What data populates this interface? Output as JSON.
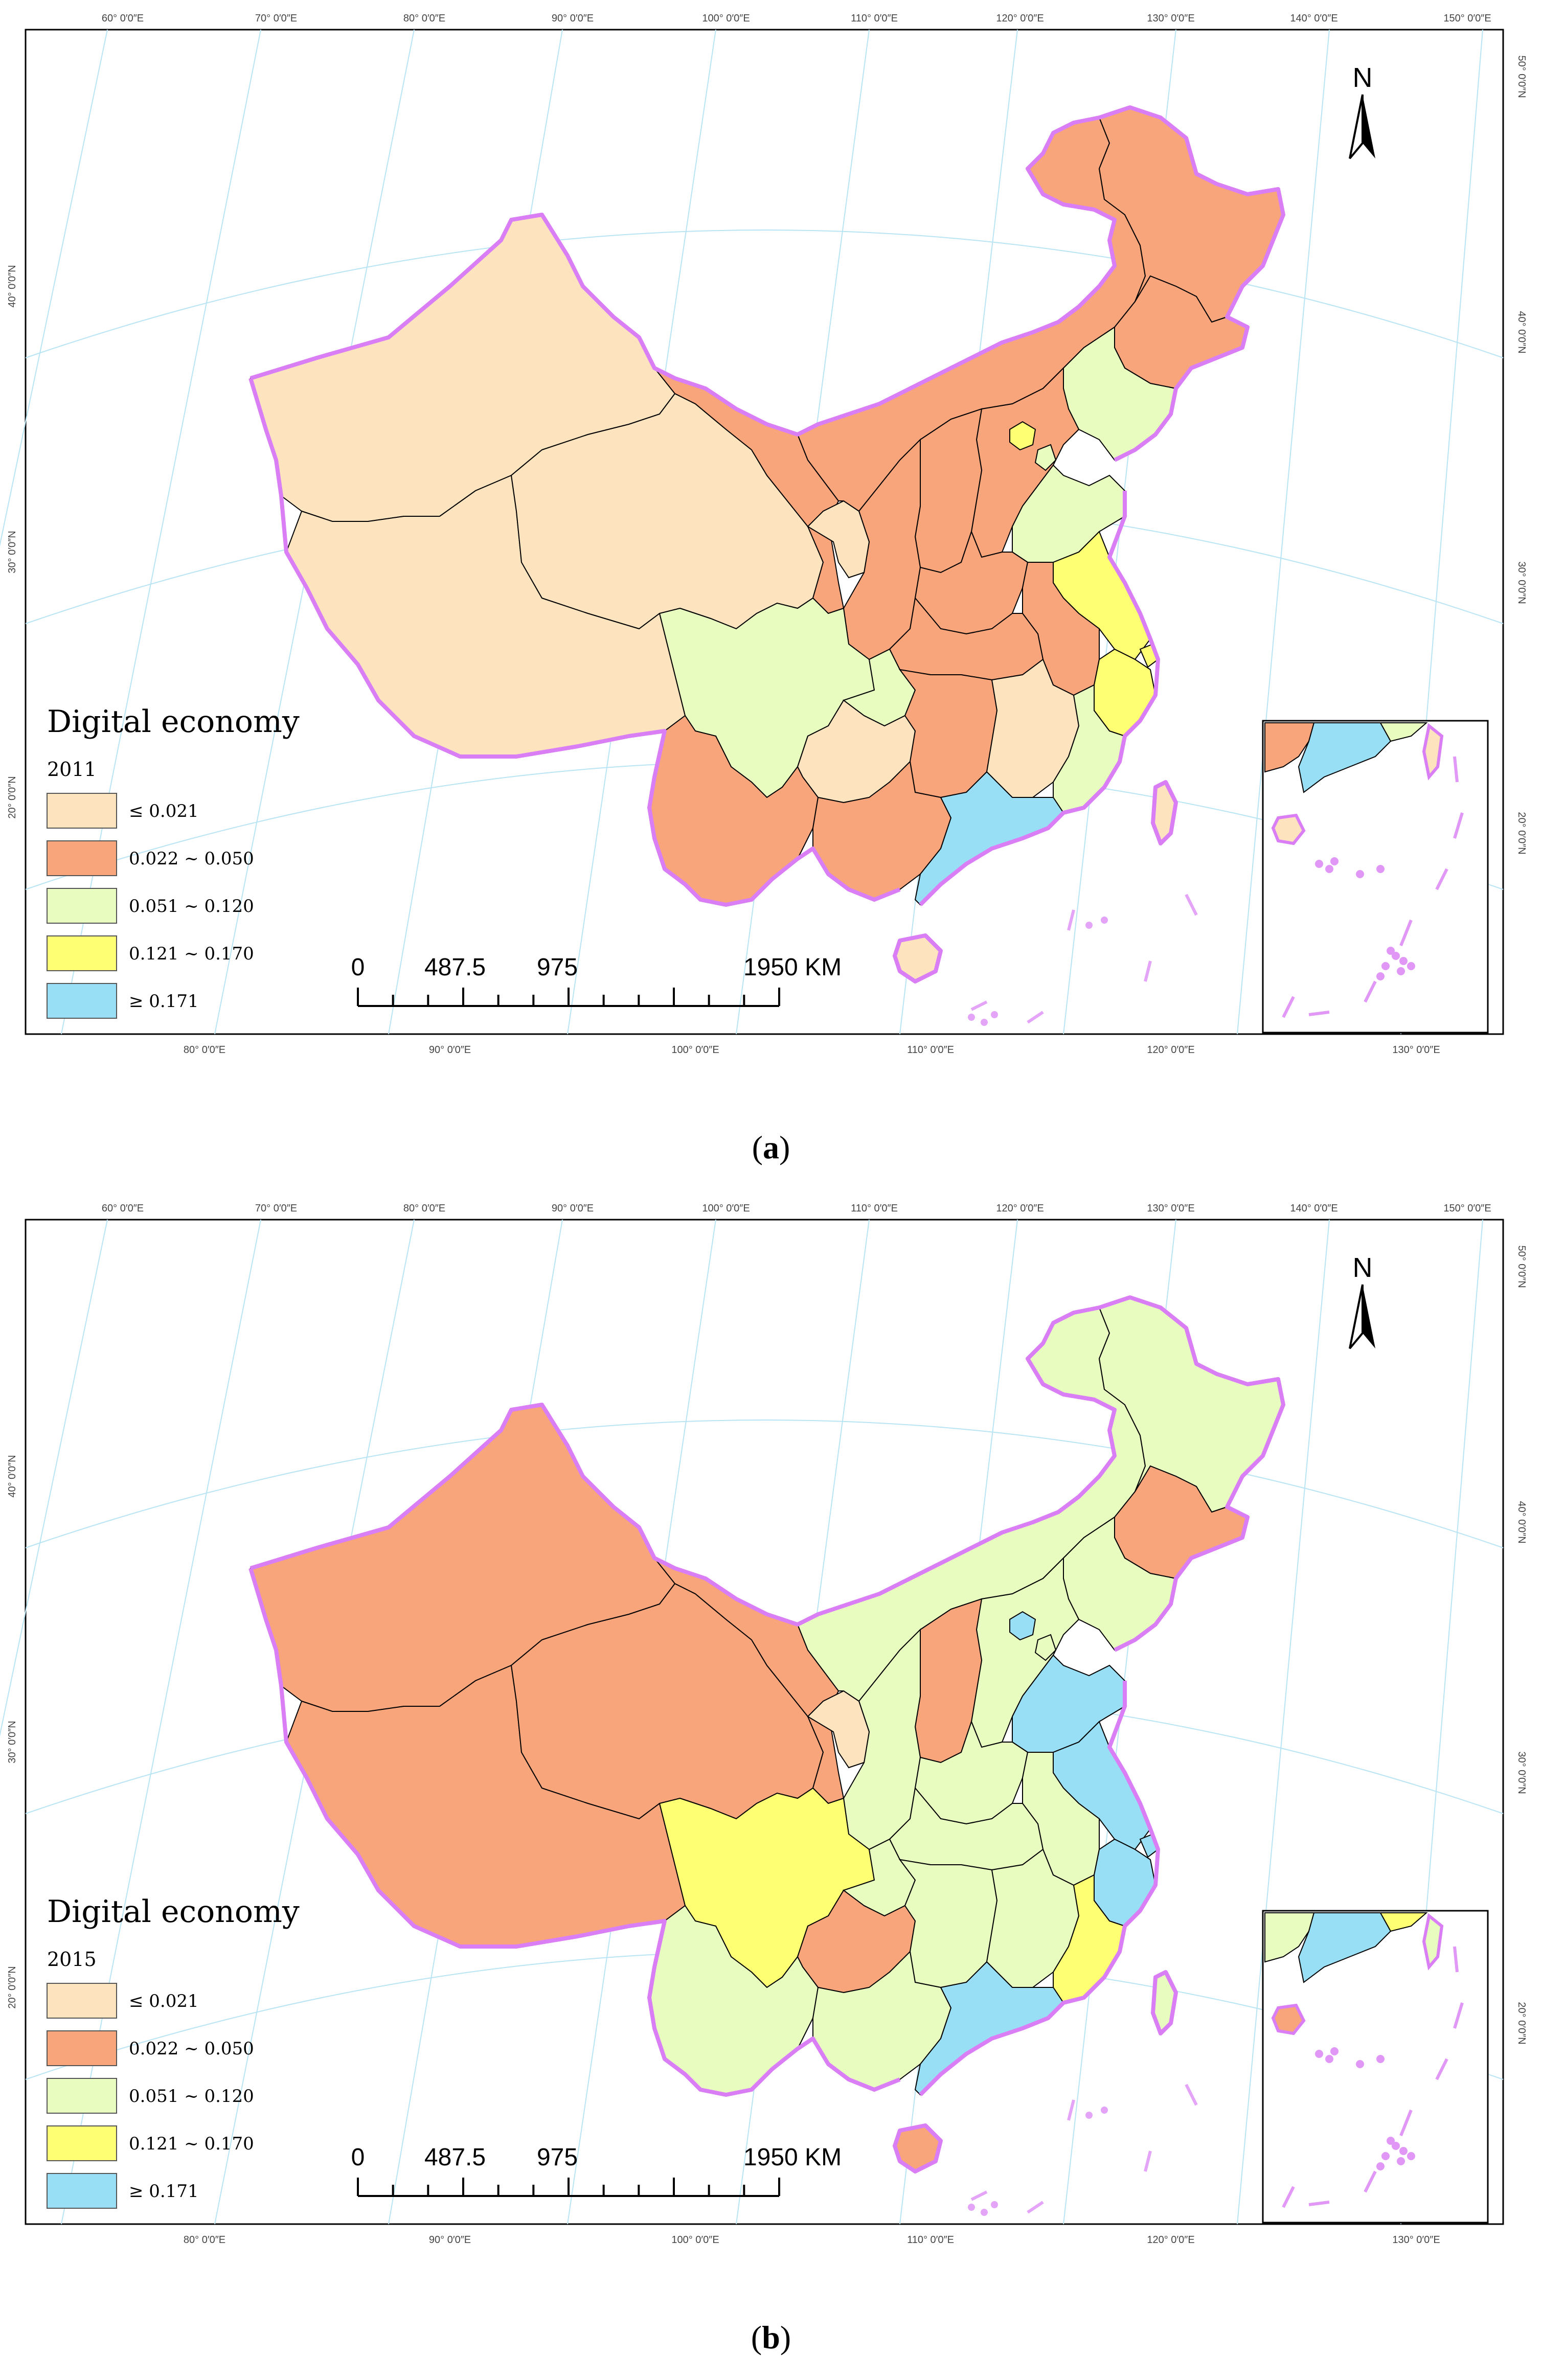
{
  "legend_title": "Digital economy",
  "legend_classes": [
    {
      "label": "≤ 0.021",
      "color": "#fde4bf"
    },
    {
      "label": "0.022 ~ 0.050",
      "color": "#f9a57c"
    },
    {
      "label": "0.051 ~ 0.120",
      "color": "#e8fcc0"
    },
    {
      "label": "0.121 ~ 0.170",
      "color": "#ffff73"
    },
    {
      "label": "≥ 0.171",
      "color": "#98dff5"
    }
  ],
  "border_color": "#d97ef5",
  "north_label": "N",
  "scale_bar": {
    "labels": [
      "0",
      "487.5",
      "975",
      "1950 KM"
    ]
  },
  "top_grid_labels": [
    "60° 0′0″E",
    "70° 0′0″E",
    "80° 0′0″E",
    "90° 0′0″E",
    "100° 0′0″E",
    "110° 0′0″E",
    "120° 0′0″E",
    "130° 0′0″E",
    "140° 0′0″E",
    "150° 0′0″E"
  ],
  "bottom_grid_labels": [
    "80° 0′0″E",
    "90° 0′0″E",
    "100° 0′0″E",
    "110° 0′0″E",
    "120° 0′0″E",
    "130° 0′0″E"
  ],
  "left_grid_labels": [
    "40° 0′0″N",
    "30° 0′0″N",
    "20° 0′0″N"
  ],
  "right_grid_labels": [
    "50° 0′0″N",
    "40° 0′0″N",
    "30° 0′0″N",
    "20° 0′0″N"
  ],
  "panels": [
    {
      "year": "2011",
      "caption_letter": "a",
      "regions": {
        "xinjiang": 0,
        "tibet": 0,
        "qinghai": 0,
        "gansu": 1,
        "ningxia": 0,
        "inner_mongolia": 1,
        "heilongjiang": 1,
        "jilin": 1,
        "liaoning": 2,
        "beijing": 3,
        "tianjin": 2,
        "hebei": 1,
        "shanxi": 1,
        "shaanxi": 1,
        "shandong": 2,
        "henan": 1,
        "jiangsu": 3,
        "shanghai": 3,
        "zhejiang": 3,
        "anhui": 1,
        "hubei": 1,
        "sichuan": 2,
        "chongqing": 2,
        "guizhou": 0,
        "yunnan": 1,
        "hunan": 1,
        "jiangxi": 0,
        "fujian": 2,
        "guangxi": 1,
        "guangdong": 4,
        "hainan": 0,
        "taiwan": 0
      }
    },
    {
      "year": "2015",
      "caption_letter": "b",
      "regions": {
        "xinjiang": 1,
        "tibet": 1,
        "qinghai": 1,
        "gansu": 1,
        "ningxia": 0,
        "inner_mongolia": 2,
        "heilongjiang": 2,
        "jilin": 1,
        "liaoning": 2,
        "beijing": 4,
        "tianjin": 2,
        "hebei": 2,
        "shanxi": 1,
        "shaanxi": 2,
        "shandong": 4,
        "henan": 2,
        "jiangsu": 4,
        "shanghai": 4,
        "zhejiang": 4,
        "anhui": 2,
        "hubei": 2,
        "sichuan": 3,
        "chongqing": 2,
        "guizhou": 1,
        "yunnan": 2,
        "hunan": 2,
        "jiangxi": 2,
        "fujian": 3,
        "guangxi": 2,
        "guangdong": 4,
        "hainan": 1,
        "taiwan": 2
      }
    }
  ]
}
